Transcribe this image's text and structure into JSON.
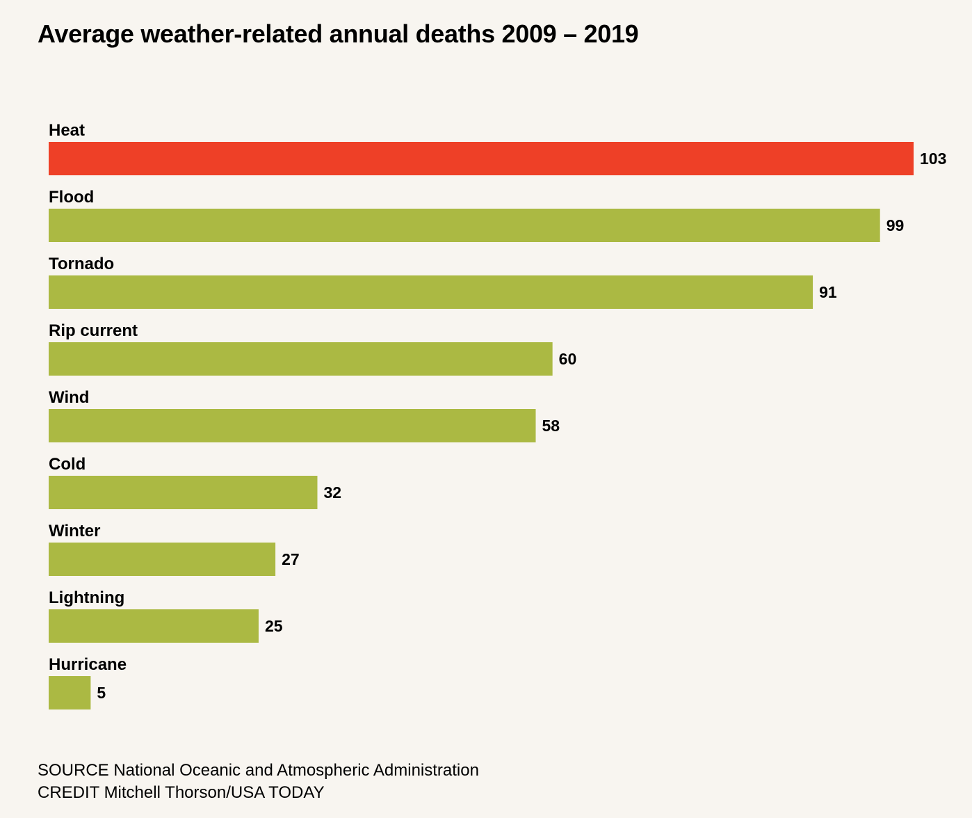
{
  "chart_data": {
    "type": "bar",
    "orientation": "horizontal",
    "title": "Average weather-related annual deaths 2009 – 2019",
    "categories": [
      "Heat",
      "Flood",
      "Tornado",
      "Rip current",
      "Wind",
      "Cold",
      "Winter",
      "Lightning",
      "Hurricane"
    ],
    "values": [
      103,
      99,
      91,
      60,
      58,
      32,
      27,
      25,
      5
    ],
    "xlabel": "",
    "ylabel": "",
    "xlim": [
      0,
      103
    ],
    "grid": false,
    "data_labels": true,
    "colors": {
      "highlight": "#ee4027",
      "default": "#abb943",
      "background": "#f8f5f0"
    },
    "highlight_category": "Heat"
  },
  "footer": {
    "source": "SOURCE National Oceanic and Atmospheric Administration",
    "credit": "CREDIT Mitchell Thorson/USA TODAY"
  }
}
